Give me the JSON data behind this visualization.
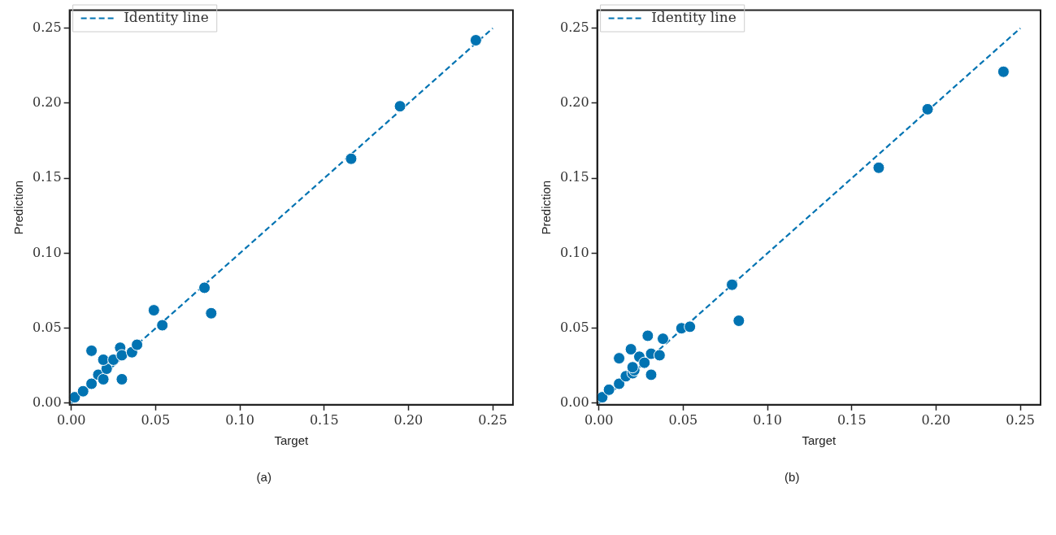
{
  "chart_data": [
    {
      "type": "scatter",
      "xlabel": "Target",
      "ylabel": "Prediction",
      "annotations": [
        "(a)"
      ],
      "legend": "top left",
      "xlim": [
        -0.001,
        0.262
      ],
      "ylim": [
        -0.001,
        0.262
      ],
      "xticks": [
        {
          "value": 0,
          "label": "0.00"
        },
        {
          "value": 0.05,
          "label": "0.05"
        },
        {
          "value": 0.1,
          "label": "0.10"
        },
        {
          "value": 0.15,
          "label": "0.15"
        },
        {
          "value": 0.2,
          "label": "0.20"
        },
        {
          "value": 0.25,
          "label": "0.25"
        }
      ],
      "yticks": [
        {
          "value": 0,
          "label": "0.00"
        },
        {
          "value": 0.05,
          "label": "0.05"
        },
        {
          "value": 0.1,
          "label": "0.10"
        },
        {
          "value": 0.15,
          "label": "0.15"
        },
        {
          "value": 0.2,
          "label": "0.20"
        },
        {
          "value": 0.25,
          "label": "0.25"
        }
      ],
      "series": [
        {
          "marker": "circle",
          "color": "#0173b2",
          "x": [
            0.002,
            0.007,
            0.012,
            0.016,
            0.019,
            0.021,
            0.019,
            0.012,
            0.025,
            0.029,
            0.03,
            0.03,
            0.036,
            0.039,
            0.049,
            0.054,
            0.079,
            0.083,
            0.166,
            0.195,
            0.24
          ],
          "values": [
            0.004,
            0.008,
            0.013,
            0.019,
            0.016,
            0.023,
            0.029,
            0.035,
            0.029,
            0.037,
            0.032,
            0.016,
            0.034,
            0.039,
            0.062,
            0.052,
            0.077,
            0.06,
            0.163,
            0.198,
            0.242
          ]
        },
        {
          "type": "line",
          "name": "Identity line",
          "marker": "none",
          "line_style": "dashed",
          "color": "#0173b2",
          "x": [
            0,
            0.25
          ],
          "values": [
            0,
            0.25
          ]
        }
      ]
    },
    {
      "type": "scatter",
      "xlabel": "Target",
      "ylabel": "Prediction",
      "annotations": [
        "(b)"
      ],
      "legend": "top left",
      "xlim": [
        -0.001,
        0.262
      ],
      "ylim": [
        -0.001,
        0.262
      ],
      "xticks": [
        {
          "value": 0,
          "label": "0.00"
        },
        {
          "value": 0.05,
          "label": "0.05"
        },
        {
          "value": 0.1,
          "label": "0.10"
        },
        {
          "value": 0.15,
          "label": "0.15"
        },
        {
          "value": 0.2,
          "label": "0.20"
        },
        {
          "value": 0.25,
          "label": "0.25"
        }
      ],
      "yticks": [
        {
          "value": 0,
          "label": "0.00"
        },
        {
          "value": 0.05,
          "label": "0.05"
        },
        {
          "value": 0.1,
          "label": "0.10"
        },
        {
          "value": 0.15,
          "label": "0.15"
        },
        {
          "value": 0.2,
          "label": "0.20"
        },
        {
          "value": 0.25,
          "label": "0.25"
        }
      ],
      "series": [
        {
          "marker": "circle",
          "color": "#0173b2",
          "x": [
            0.002,
            0.006,
            0.012,
            0.016,
            0.02,
            0.021,
            0.02,
            0.012,
            0.019,
            0.024,
            0.027,
            0.031,
            0.036,
            0.031,
            0.029,
            0.038,
            0.049,
            0.054,
            0.079,
            0.083,
            0.166,
            0.195,
            0.24
          ],
          "values": [
            0.004,
            0.009,
            0.013,
            0.018,
            0.02,
            0.022,
            0.024,
            0.03,
            0.036,
            0.031,
            0.027,
            0.033,
            0.032,
            0.019,
            0.045,
            0.043,
            0.05,
            0.051,
            0.079,
            0.055,
            0.157,
            0.196,
            0.221
          ]
        },
        {
          "type": "line",
          "name": "Identity line",
          "marker": "none",
          "line_style": "dashed",
          "color": "#0173b2",
          "x": [
            0,
            0.25
          ],
          "values": [
            0,
            0.25
          ]
        }
      ]
    }
  ]
}
